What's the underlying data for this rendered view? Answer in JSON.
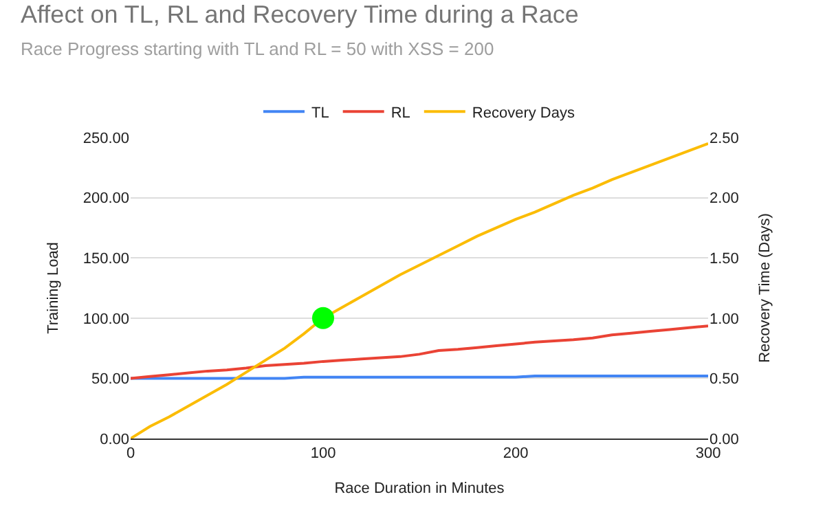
{
  "chart_data": {
    "type": "line",
    "title": "Affect on TL, RL and Recovery Time during a Race",
    "subtitle": "Race Progress starting with TL and RL = 50 with XSS = 200",
    "xlabel": "Race Duration in Minutes",
    "ylabel": "Training Load",
    "y2label": "Recovery Time (Days)",
    "x": [
      0,
      10,
      20,
      30,
      40,
      50,
      60,
      70,
      80,
      90,
      100,
      110,
      120,
      130,
      140,
      150,
      160,
      170,
      180,
      190,
      200,
      210,
      220,
      230,
      240,
      250,
      260,
      270,
      280,
      290,
      300
    ],
    "series": [
      {
        "name": "TL",
        "color": "#4285f4",
        "values": [
          50,
          50,
          50,
          50,
          50,
          50,
          50,
          50,
          50,
          51,
          51,
          51,
          51,
          51,
          51,
          51,
          51,
          51,
          51,
          51,
          51,
          52,
          52,
          52,
          52,
          52,
          52,
          52,
          52,
          52,
          52
        ]
      },
      {
        "name": "RL",
        "color": "#ea4335",
        "values": [
          50,
          51.5,
          53,
          54.5,
          56,
          57,
          58.5,
          60.5,
          61.5,
          62.5,
          64,
          65,
          66,
          67,
          68,
          70,
          73,
          74,
          75.5,
          77,
          78.5,
          80,
          81,
          82,
          83.5,
          86,
          87.5,
          89,
          90.5,
          92,
          93.5
        ]
      },
      {
        "name": "Recovery Days",
        "color": "#fbbc04",
        "axis": "y2",
        "values": [
          0,
          0.1,
          0.18,
          0.27,
          0.36,
          0.45,
          0.55,
          0.65,
          0.75,
          0.87,
          1.0,
          1.09,
          1.18,
          1.27,
          1.36,
          1.44,
          1.52,
          1.6,
          1.68,
          1.75,
          1.82,
          1.88,
          1.95,
          2.02,
          2.08,
          2.15,
          2.21,
          2.27,
          2.33,
          2.39,
          2.45
        ]
      },
      {
        "type": "scatter",
        "color": "#00ff00",
        "axis": "y2",
        "marker": "circle",
        "x": [
          100
        ],
        "values": [
          1.0
        ]
      }
    ],
    "xlim": [
      0,
      300
    ],
    "xticks": [
      0,
      100,
      200,
      300
    ],
    "ylim": [
      0,
      250
    ],
    "yticks": [
      {
        "value": 0,
        "label": "0.00"
      },
      {
        "value": 50,
        "label": "50.00"
      },
      {
        "value": 100,
        "label": "100.00"
      },
      {
        "value": 150,
        "label": "150.00"
      },
      {
        "value": 200,
        "label": "200.00"
      },
      {
        "value": 250,
        "label": "250.00"
      }
    ],
    "y2lim": [
      0,
      2.5
    ],
    "y2ticks": [
      {
        "value": 0,
        "label": "0.00"
      },
      {
        "value": 0.5,
        "label": "0.50"
      },
      {
        "value": 1,
        "label": "1.00"
      },
      {
        "value": 1.5,
        "label": "1.50"
      },
      {
        "value": 2,
        "label": "2.00"
      },
      {
        "value": 2.5,
        "label": "2.50"
      }
    ],
    "grid": "y",
    "legend": "top",
    "marker": "none",
    "line_style": "solid"
  }
}
